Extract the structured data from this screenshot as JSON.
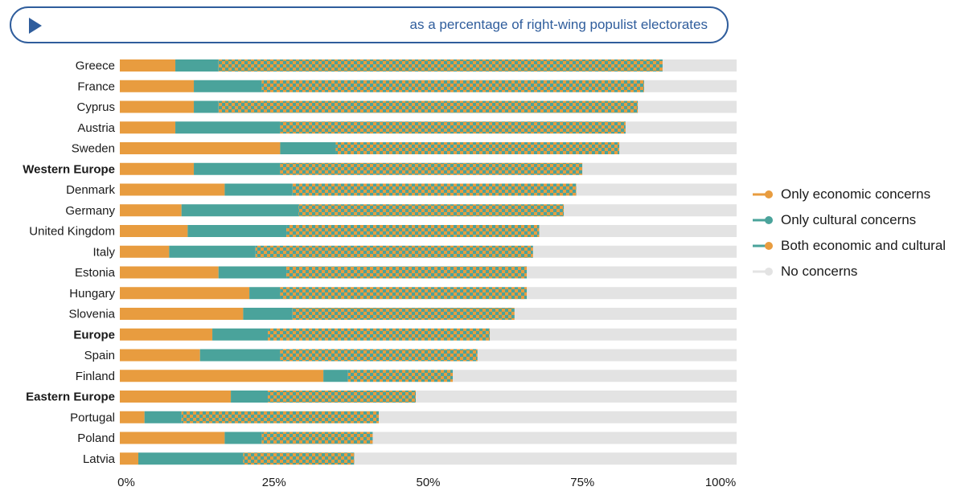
{
  "header": {
    "title": "as a percentage of right-wing populist electorates"
  },
  "colors": {
    "economic": "#e89c3f",
    "cultural": "#4aa39b",
    "none": "#e3e3e3",
    "header": "#2f5d9c"
  },
  "legend": {
    "items": [
      {
        "key": "economic",
        "label": "Only economic concerns"
      },
      {
        "key": "cultural",
        "label": "Only cultural concerns"
      },
      {
        "key": "both",
        "label": "Both economic and cultural"
      },
      {
        "key": "none",
        "label": "No concerns"
      }
    ]
  },
  "chart_data": {
    "type": "bar",
    "orientation": "horizontal",
    "stacked": true,
    "xlim": [
      0,
      100
    ],
    "x_ticks": [
      "0%",
      "25%",
      "50%",
      "75%",
      "100%"
    ],
    "categories": [
      "Greece",
      "France",
      "Cyprus",
      "Austria",
      "Sweden",
      "Western Europe",
      "Denmark",
      "Germany",
      "United Kingdom",
      "Italy",
      "Estonia",
      "Hungary",
      "Slovenia",
      "Europe",
      "Spain",
      "Finland",
      "Eastern Europe",
      "Portugal",
      "Poland",
      "Latvia"
    ],
    "bold_categories": [
      "Western Europe",
      "Europe",
      "Eastern Europe"
    ],
    "series": [
      {
        "name": "Only economic concerns",
        "key": "economic",
        "values": [
          9,
          12,
          12,
          9,
          26,
          12,
          17,
          10,
          11,
          8,
          16,
          21,
          20,
          15,
          13,
          33,
          18,
          4,
          17,
          3
        ]
      },
      {
        "name": "Only cultural concerns",
        "key": "cultural",
        "values": [
          7,
          11,
          4,
          17,
          9,
          14,
          11,
          19,
          16,
          14,
          11,
          5,
          8,
          9,
          13,
          4,
          6,
          6,
          6,
          17
        ]
      },
      {
        "name": "Both economic and cultural",
        "key": "both",
        "values": [
          72,
          62,
          68,
          56,
          46,
          49,
          46,
          43,
          41,
          45,
          39,
          40,
          36,
          36,
          32,
          17,
          24,
          32,
          18,
          18
        ]
      },
      {
        "name": "No concerns",
        "key": "none",
        "values": [
          12,
          15,
          16,
          18,
          19,
          25,
          26,
          28,
          32,
          33,
          34,
          34,
          36,
          40,
          42,
          46,
          52,
          58,
          59,
          62
        ]
      }
    ]
  }
}
